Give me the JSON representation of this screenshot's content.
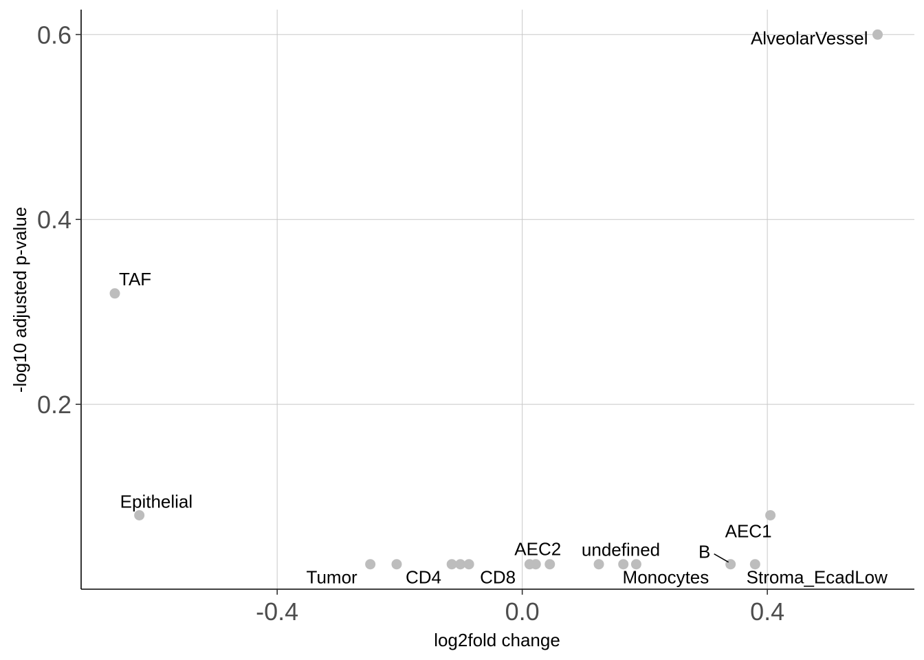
{
  "chart_data": {
    "type": "scatter",
    "xlabel": "log2fold change",
    "ylabel": "-log10 adjusted p-value",
    "xlim": [
      -0.72,
      0.64
    ],
    "ylim": [
      0,
      0.627
    ],
    "x_ticks": [
      -0.4,
      0.0,
      0.4
    ],
    "x_tick_labels": [
      "-0.4",
      "0.0",
      "0.4"
    ],
    "y_ticks": [
      0.2,
      0.4,
      0.6
    ],
    "y_tick_labels": [
      "0.2",
      "0.4",
      "0.6"
    ],
    "grid": true,
    "point_color": "#bdbdbd",
    "points": [
      {
        "x": 0.58,
        "y": 0.6,
        "label": "AlveolarVessel"
      },
      {
        "x": -0.665,
        "y": 0.32,
        "label": "TAF"
      },
      {
        "x": -0.625,
        "y": 0.08,
        "label": "Epithelial"
      },
      {
        "x": 0.405,
        "y": 0.08,
        "label": "AEC1"
      },
      {
        "x": -0.248,
        "y": 0.027,
        "label": "Tumor"
      },
      {
        "x": -0.205,
        "y": 0.027,
        "label": "CD4"
      },
      {
        "x": -0.115,
        "y": 0.027,
        "label": ""
      },
      {
        "x": -0.101,
        "y": 0.027,
        "label": ""
      },
      {
        "x": -0.087,
        "y": 0.027,
        "label": "CD8"
      },
      {
        "x": 0.012,
        "y": 0.027,
        "label": ""
      },
      {
        "x": 0.022,
        "y": 0.027,
        "label": "AEC2"
      },
      {
        "x": 0.045,
        "y": 0.027,
        "label": ""
      },
      {
        "x": 0.125,
        "y": 0.027,
        "label": "undefined"
      },
      {
        "x": 0.165,
        "y": 0.027,
        "label": ""
      },
      {
        "x": 0.186,
        "y": 0.027,
        "label": "Monocytes"
      },
      {
        "x": 0.34,
        "y": 0.027,
        "label": "B"
      },
      {
        "x": 0.38,
        "y": 0.027,
        "label": "Stroma_EcadLow"
      }
    ]
  }
}
